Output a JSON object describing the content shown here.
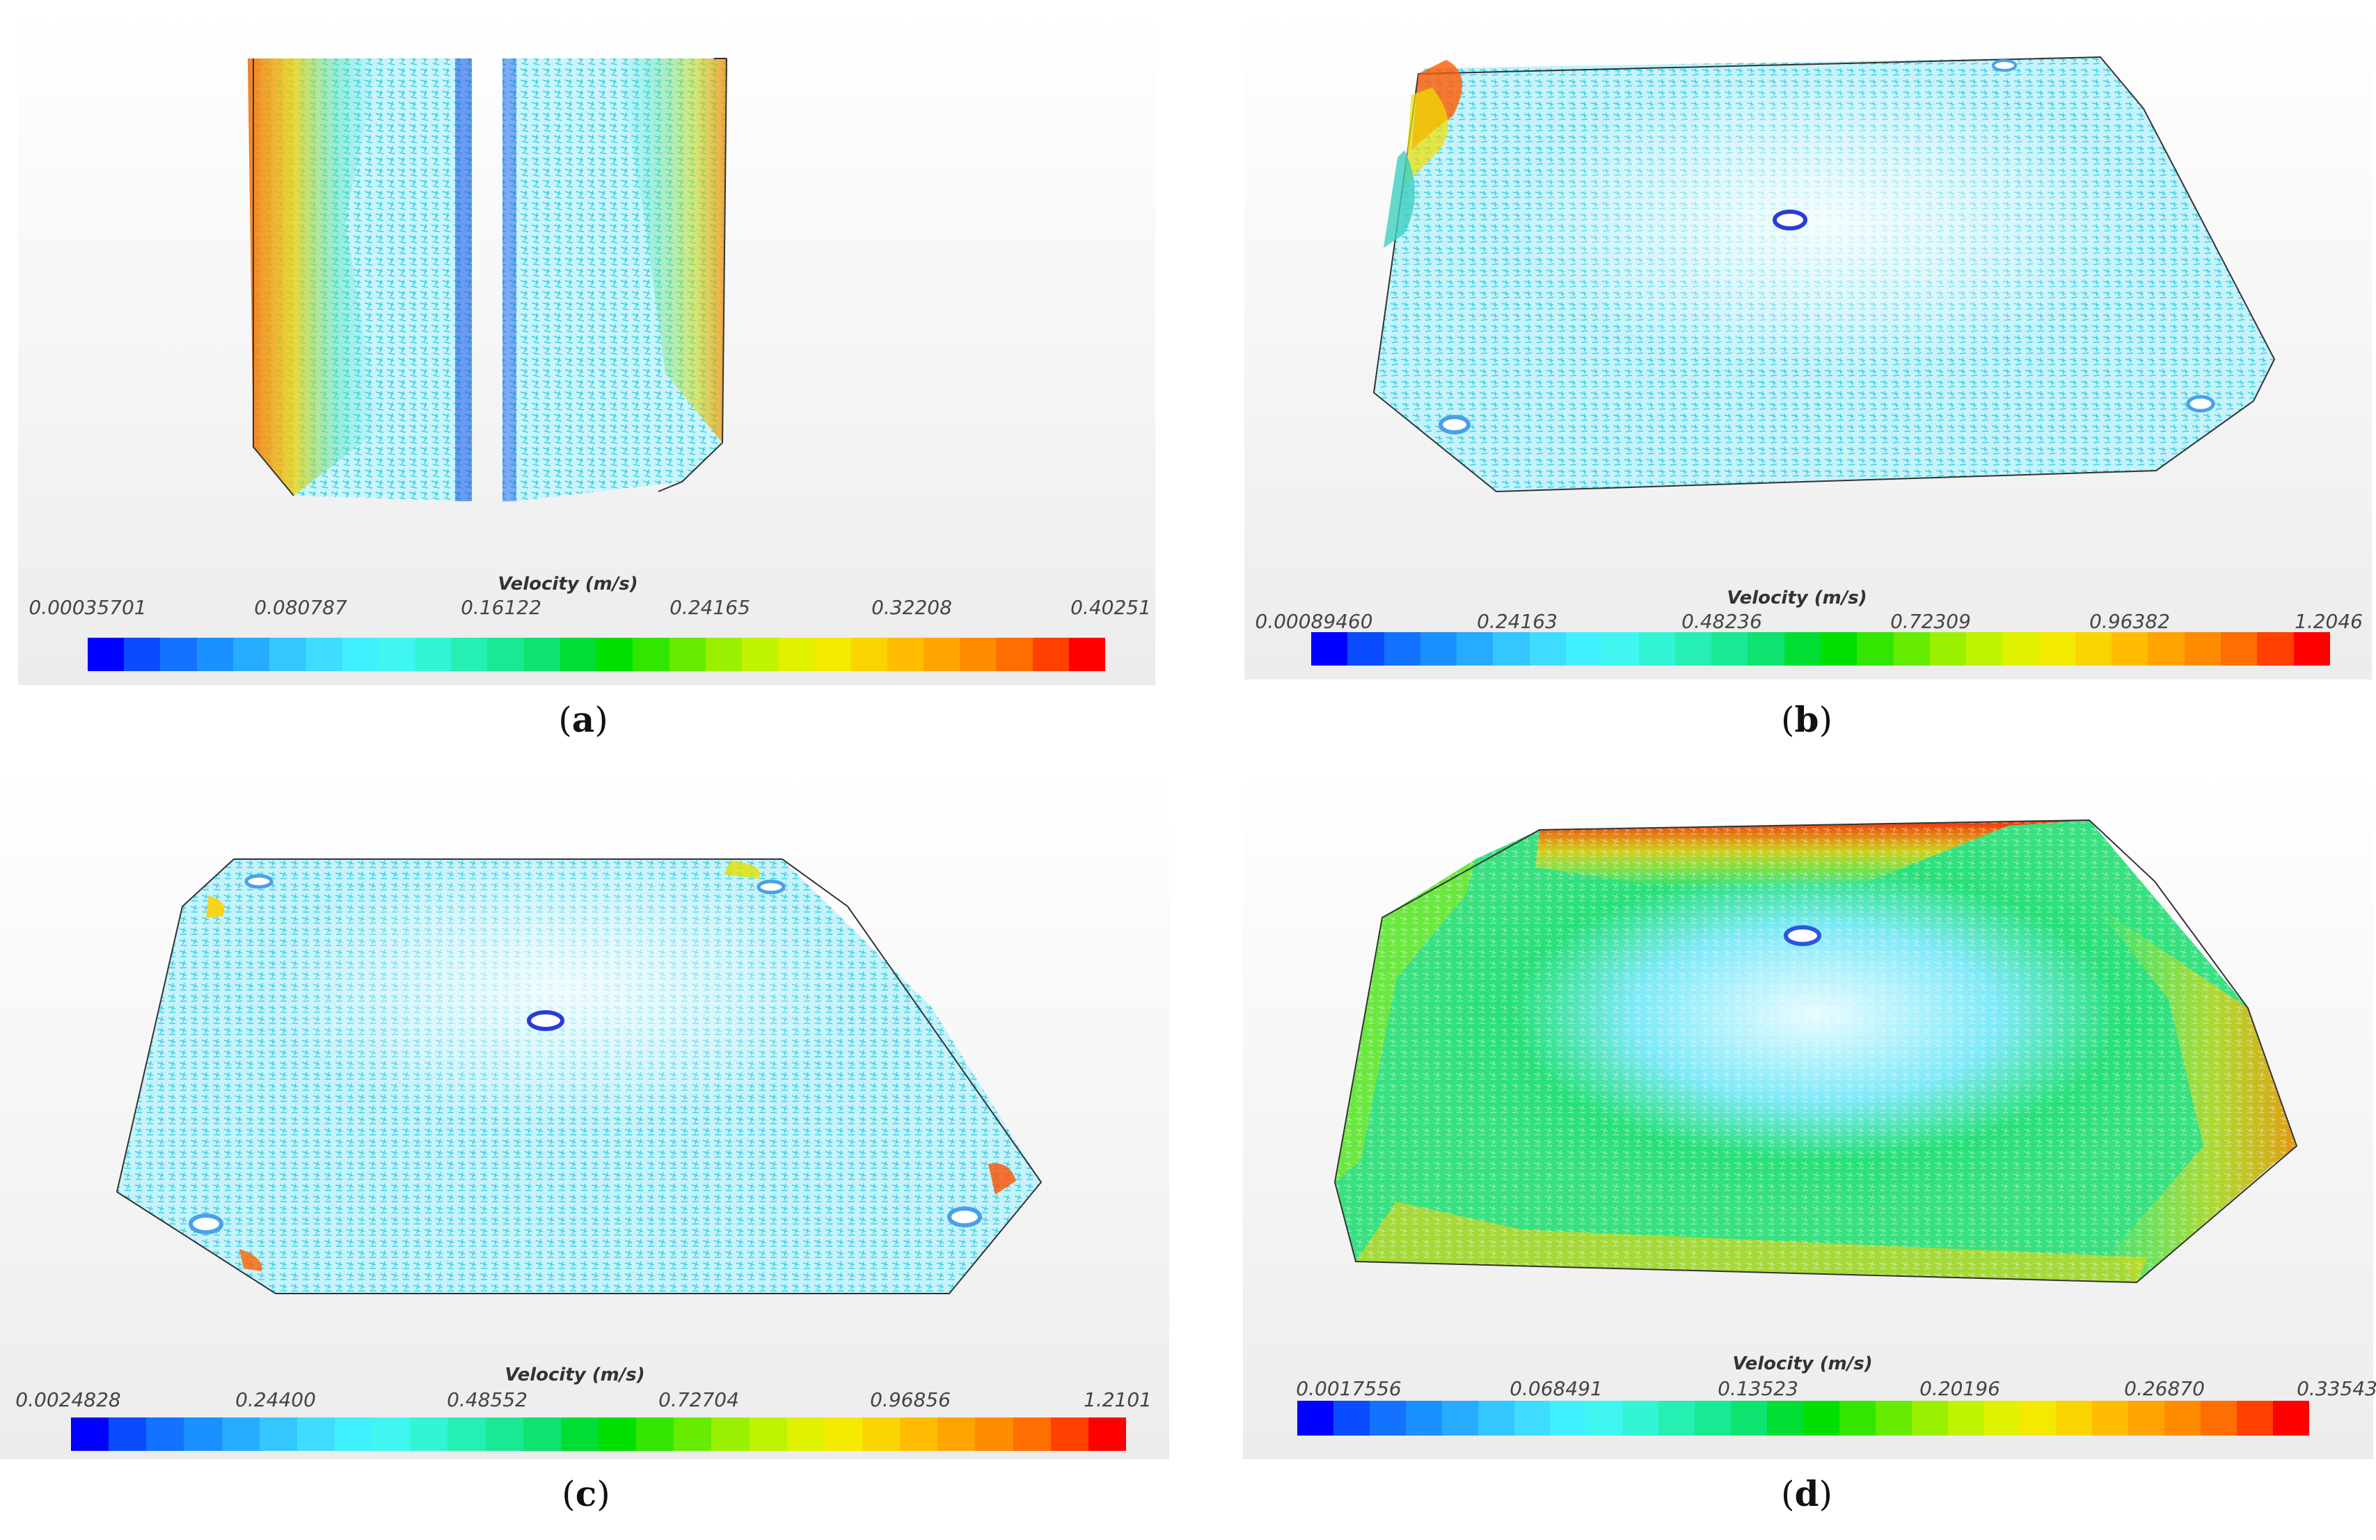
{
  "colorbar_colors": [
    "#0000ff",
    "#0a4cff",
    "#1372ff",
    "#1b90ff",
    "#26abff",
    "#33c6ff",
    "#3fdcff",
    "#40f0ff",
    "#3ff7f0",
    "#33f4d4",
    "#26efb4",
    "#1ae994",
    "#0ee270",
    "#00dd33",
    "#00e000",
    "#33e600",
    "#66ec00",
    "#99f000",
    "#bff300",
    "#e0f200",
    "#f4ea00",
    "#fad400",
    "#ffbc00",
    "#ffa400",
    "#ff8c00",
    "#ff6e00",
    "#ff4000",
    "#ff0000"
  ],
  "panels": [
    {
      "id": "a",
      "caption_letter": "a",
      "colorbar": {
        "title": "Velocity (m/s)",
        "ticks": [
          "0.00035701",
          "0.080787",
          "0.16122",
          "0.24165",
          "0.32208",
          "0.40251"
        ]
      }
    },
    {
      "id": "b",
      "caption_letter": "b",
      "colorbar": {
        "title": "Velocity (m/s)",
        "ticks": [
          "0.00089460",
          "0.24163",
          "0.48236",
          "0.72309",
          "0.96382",
          "1.2046"
        ]
      }
    },
    {
      "id": "c",
      "caption_letter": "c",
      "colorbar": {
        "title": "Velocity (m/s)",
        "ticks": [
          "0.0024828",
          "0.24400",
          "0.48552",
          "0.72704",
          "0.96856",
          "1.2101"
        ]
      }
    },
    {
      "id": "d",
      "caption_letter": "d",
      "colorbar": {
        "title": "Velocity (m/s)",
        "ticks": [
          "0.0017556",
          "0.068491",
          "0.13523",
          "0.20196",
          "0.26870",
          "0.33543"
        ]
      }
    }
  ]
}
